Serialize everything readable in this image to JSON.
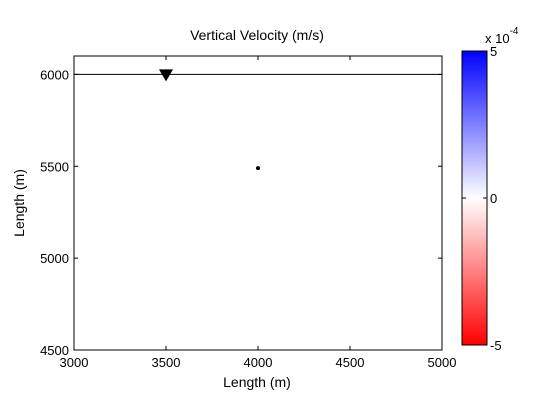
{
  "chart_data": {
    "type": "heatmap",
    "title": "Vertical Velocity (m/s)",
    "xlabel": "Length (m)",
    "ylabel": "Length (m)",
    "xlim": [
      3000,
      5000
    ],
    "ylim": [
      4500,
      6100
    ],
    "x_ticks": [
      3000,
      3500,
      4000,
      4500,
      5000
    ],
    "x_tick_labels": [
      "3000",
      "3500",
      "4000",
      "4500",
      "5000"
    ],
    "y_ticks": [
      4500,
      5000,
      5500,
      6000
    ],
    "y_tick_labels": [
      "4500",
      "5000",
      "5500",
      "6000"
    ],
    "surface_line_y": 6000,
    "receiver_marker": {
      "x": 3500,
      "y": 6000,
      "shape": "triangle-down"
    },
    "source_marker": {
      "x": 4000,
      "y": 5490,
      "shape": "dot"
    },
    "colorbar": {
      "min": -5,
      "max": 5,
      "tick_labels": [
        "5",
        "0",
        "-5"
      ],
      "tick_values": [
        5,
        0,
        -5
      ],
      "multiplier_base": "x 10",
      "multiplier_exponent": "-4",
      "colors": {
        "max": "#0000ff",
        "mid": "#ffffff",
        "min": "#ff0000"
      }
    },
    "grid": false
  }
}
